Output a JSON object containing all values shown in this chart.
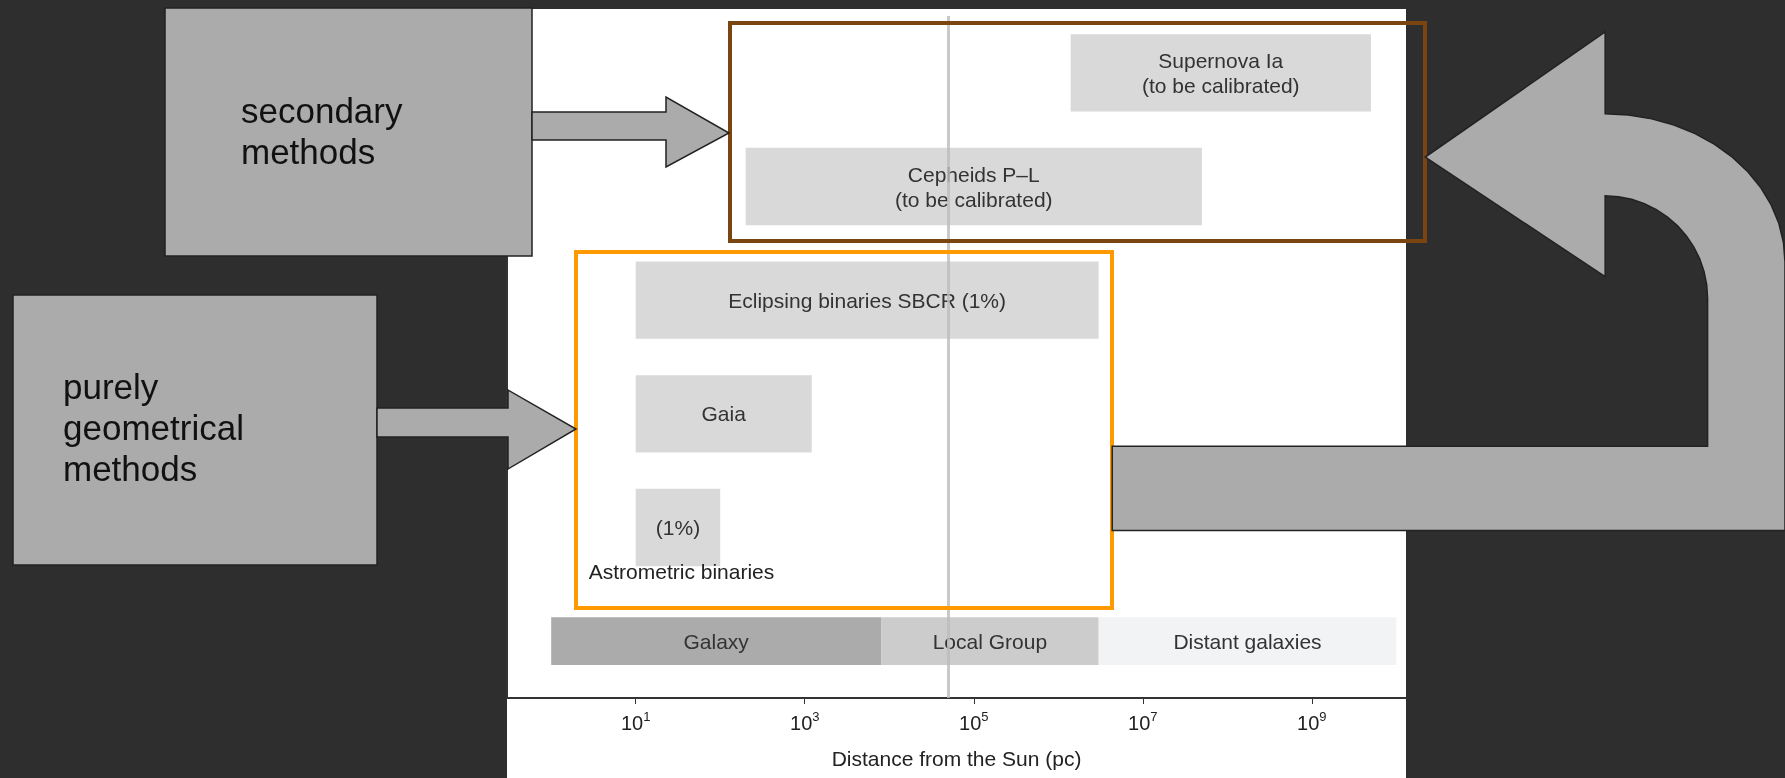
{
  "chart_data": {
    "type": "bar",
    "orientation": "horizontal",
    "xlabel": "Distance from the Sun (pc)",
    "log": "x",
    "xlim": [
      0.3,
      13000000000
    ],
    "xticks": [
      {
        "value": 10,
        "label": "10$^{1}$"
      },
      {
        "value": 1000,
        "label": "10$^{3}$"
      },
      {
        "value": 100000,
        "label": "10$^{5}$"
      },
      {
        "value": 10000000,
        "label": "10$^{7}$"
      },
      {
        "value": 1000000000,
        "label": "10$^{9}$"
      }
    ],
    "categories": [
      "Supernova Ia\n(to be calibrated)",
      "Cepheids P–L\n(to be calibrated)",
      "Eclipsing binaries SBCR (1%)",
      "Gaia",
      "Astrometric binaries",
      null
    ],
    "series": [
      {
        "color": "#d9d9d9",
        "base": [
          1400000,
          200,
          10,
          10,
          10,
          null
        ],
        "values": [
          5000000000,
          50000000,
          3000000,
          1200,
          90,
          null
        ]
      },
      {
        "name": "Galaxy",
        "color": "#ababab",
        "base": [
          null,
          null,
          null,
          null,
          null,
          1
        ],
        "values": [
          null,
          null,
          null,
          null,
          null,
          8000
        ]
      },
      {
        "name": "Local Group",
        "color": "#cccccc",
        "base": [
          null,
          null,
          null,
          null,
          null,
          8000
        ],
        "values": [
          null,
          null,
          null,
          null,
          null,
          3000000
        ]
      },
      {
        "name": "Distant galaxies",
        "color": "#f2f3f5",
        "base": [
          null,
          null,
          null,
          null,
          null,
          3000000
        ],
        "values": [
          null,
          null,
          null,
          null,
          null,
          10000000000
        ]
      }
    ],
    "ref_lines": [
      {
        "axis": "x",
        "value": 50000,
        "color": "#bbbbbb"
      }
    ],
    "annotations": [
      "secondary methods",
      "purely geometrical methods",
      "(1%)"
    ],
    "legend": false
  }
}
